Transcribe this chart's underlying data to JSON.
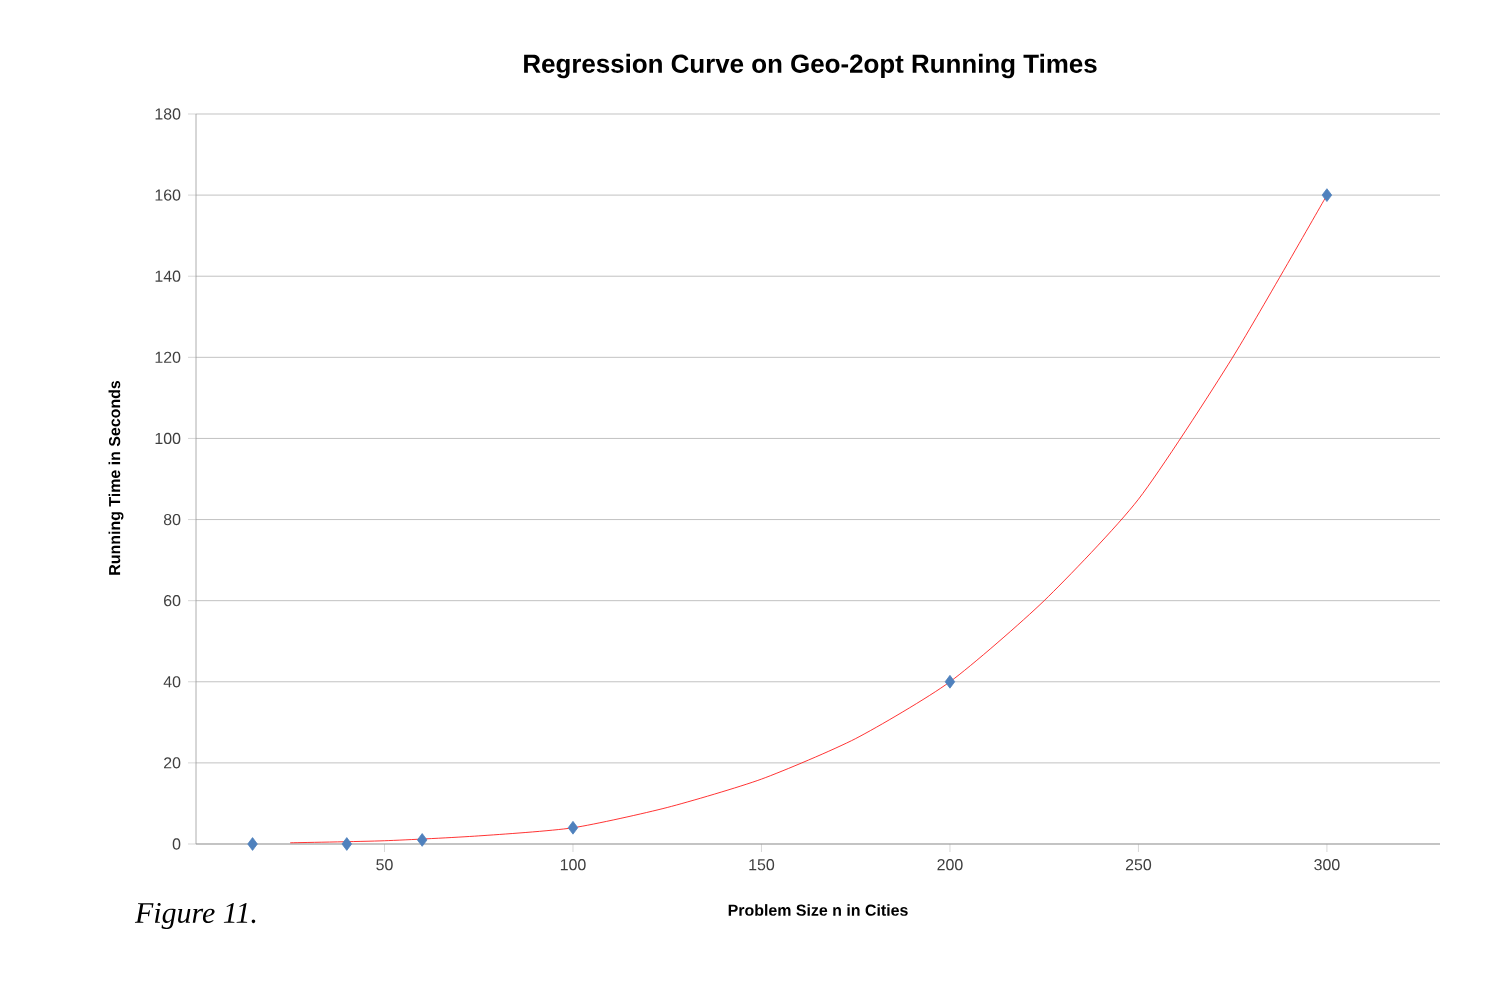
{
  "chart_data": {
    "type": "scatter",
    "title": "Regression Curve on Geo-2opt Running Times",
    "xlabel": "Problem Size  n in Cities",
    "ylabel": "Running Time in Seconds",
    "annotations": [
      "*Figure 11.*"
    ],
    "xlim": [
      0,
      330
    ],
    "ylim": [
      0,
      180
    ],
    "xticks": [
      50,
      100,
      150,
      200,
      250,
      300
    ],
    "yticks": [
      0,
      20,
      40,
      60,
      80,
      100,
      120,
      140,
      160,
      180
    ],
    "grid": "y",
    "series": [
      {
        "type": "line",
        "color": "#ff0000",
        "marker": "none",
        "x": [
          25,
          50,
          75,
          100,
          125,
          150,
          175,
          200,
          225,
          250,
          275,
          300
        ],
        "values": [
          0.3,
          0.8,
          2,
          4,
          9,
          16,
          26,
          40,
          60,
          85,
          120,
          160
        ]
      },
      {
        "color": "#4f81bd",
        "marker": "diamond",
        "x": [
          15,
          40,
          60,
          100,
          200,
          300
        ],
        "values": [
          0,
          0,
          1,
          4,
          40,
          160
        ]
      }
    ]
  }
}
